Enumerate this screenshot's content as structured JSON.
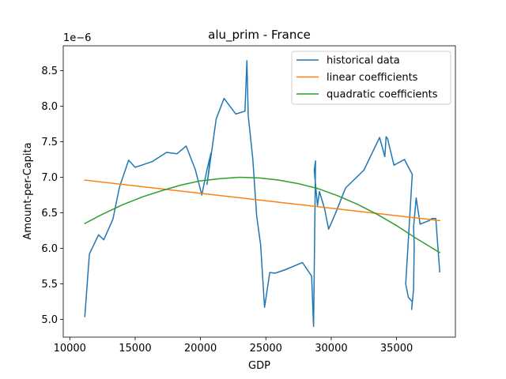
{
  "chart_data": {
    "type": "line",
    "title": "alu_prim - France",
    "xlabel": "GDP",
    "ylabel": "Amount-per-Capita",
    "y_multiplier_label": "1e−6",
    "xlim": [
      9500,
      39500
    ],
    "ylim": [
      4.75,
      8.85
    ],
    "x_ticks": [
      10000,
      15000,
      20000,
      25000,
      30000,
      35000
    ],
    "x_tick_labels": [
      "10000",
      "15000",
      "20000",
      "25000",
      "30000",
      "35000"
    ],
    "y_ticks": [
      5.0,
      5.5,
      6.0,
      6.5,
      7.0,
      7.5,
      8.0,
      8.5
    ],
    "y_tick_labels": [
      "5.0",
      "5.5",
      "6.0",
      "6.5",
      "7.0",
      "7.5",
      "8.0",
      "8.5"
    ],
    "legend_position": "top-right",
    "series": [
      {
        "name": "historical data",
        "color": "#1f77b4",
        "x": [
          11150,
          11500,
          12200,
          12600,
          13300,
          13800,
          14500,
          15000,
          15500,
          16300,
          17400,
          18200,
          18900,
          19600,
          20100,
          20500,
          20800,
          20500,
          21200,
          21800,
          22700,
          23400,
          23550,
          23650,
          24000,
          24300,
          24600,
          24900,
          25300,
          25700,
          26500,
          27800,
          28500,
          28650,
          28800,
          28700,
          28950,
          29100,
          29500,
          29800,
          30300,
          31100,
          32500,
          33700,
          34100,
          34200,
          34300,
          34800,
          35100,
          35600,
          36200,
          35700,
          35900,
          36200,
          36150,
          36300,
          36350,
          36300,
          36500,
          36800,
          37200,
          37500,
          37700,
          38000,
          38300
        ],
        "y": [
          5.04,
          5.92,
          6.19,
          6.12,
          6.41,
          6.86,
          7.24,
          7.14,
          7.17,
          7.22,
          7.35,
          7.33,
          7.44,
          7.11,
          6.75,
          7.11,
          7.34,
          6.9,
          7.82,
          8.11,
          7.89,
          7.93,
          8.64,
          7.87,
          7.26,
          6.45,
          6.05,
          5.17,
          5.66,
          5.65,
          5.7,
          5.8,
          5.61,
          4.9,
          7.23,
          7.1,
          6.6,
          6.8,
          6.55,
          6.27,
          6.48,
          6.85,
          7.1,
          7.56,
          7.29,
          7.57,
          7.55,
          7.17,
          7.2,
          7.25,
          7.04,
          5.5,
          5.31,
          5.25,
          5.14,
          5.42,
          6.05,
          6.3,
          6.71,
          6.34,
          6.37,
          6.39,
          6.42,
          6.42,
          5.67
        ]
      },
      {
        "name": "linear coefficients",
        "color": "#ff7f0e",
        "x": [
          11150,
          38300
        ],
        "y": [
          6.96,
          6.39
        ]
      },
      {
        "name": "quadratic coefficients",
        "color": "#2ca02c",
        "x": [
          11150,
          12500,
          14000,
          15500,
          17000,
          18500,
          20000,
          21500,
          23000,
          24500,
          26000,
          27500,
          29000,
          30500,
          32000,
          33500,
          35000,
          36500,
          38300
        ],
        "y": [
          6.35,
          6.48,
          6.61,
          6.72,
          6.81,
          6.89,
          6.95,
          6.98,
          7.0,
          6.99,
          6.96,
          6.91,
          6.84,
          6.74,
          6.62,
          6.48,
          6.32,
          6.14,
          5.94
        ]
      }
    ]
  }
}
